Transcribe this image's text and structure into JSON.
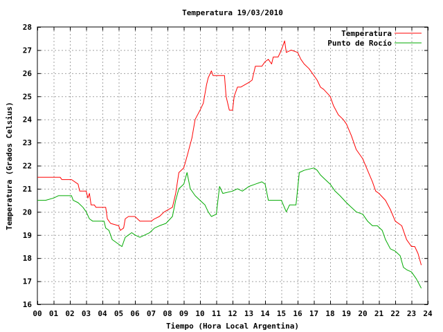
{
  "chart_data": {
    "type": "line",
    "title": "Temperatura 19/03/2010",
    "xlabel": "Tiempo (Hora Local Argentina)",
    "ylabel": "Temperatura (Grados Celsius)",
    "xlim": [
      0,
      24
    ],
    "ylim": [
      16,
      28
    ],
    "xticks": [
      0,
      1,
      2,
      3,
      4,
      5,
      6,
      7,
      8,
      9,
      10,
      11,
      12,
      13,
      14,
      15,
      16,
      17,
      18,
      19,
      20,
      21,
      22,
      23,
      24
    ],
    "xtick_labels": [
      "00",
      "01",
      "02",
      "03",
      "04",
      "05",
      "06",
      "07",
      "08",
      "09",
      "10",
      "11",
      "12",
      "13",
      "14",
      "15",
      "16",
      "17",
      "18",
      "19",
      "20",
      "21",
      "22",
      "23",
      "24"
    ],
    "yticks": [
      16,
      17,
      18,
      19,
      20,
      21,
      22,
      23,
      24,
      25,
      26,
      27,
      28
    ],
    "ytick_labels": [
      "16",
      "17",
      "18",
      "19",
      "20",
      "21",
      "22",
      "23",
      "24",
      "25",
      "26",
      "27",
      "28"
    ],
    "grid": true,
    "legend_position": "top-right",
    "series": [
      {
        "name": "Temperatura",
        "color": "#ff0000",
        "points": [
          [
            0.0,
            21.5
          ],
          [
            1.4,
            21.5
          ],
          [
            1.5,
            21.4
          ],
          [
            2.1,
            21.4
          ],
          [
            2.5,
            21.2
          ],
          [
            2.6,
            20.9
          ],
          [
            3.0,
            20.9
          ],
          [
            3.1,
            20.6
          ],
          [
            3.2,
            20.8
          ],
          [
            3.3,
            20.3
          ],
          [
            3.5,
            20.3
          ],
          [
            3.6,
            20.2
          ],
          [
            4.2,
            20.2
          ],
          [
            4.3,
            19.7
          ],
          [
            4.5,
            19.5
          ],
          [
            5.0,
            19.4
          ],
          [
            5.1,
            19.2
          ],
          [
            5.3,
            19.3
          ],
          [
            5.4,
            19.7
          ],
          [
            5.6,
            19.8
          ],
          [
            6.0,
            19.8
          ],
          [
            6.3,
            19.6
          ],
          [
            7.0,
            19.6
          ],
          [
            7.2,
            19.7
          ],
          [
            7.5,
            19.8
          ],
          [
            7.8,
            20.0
          ],
          [
            8.3,
            20.2
          ],
          [
            8.5,
            20.8
          ],
          [
            8.7,
            21.7
          ],
          [
            9.0,
            21.9
          ],
          [
            9.2,
            22.4
          ],
          [
            9.5,
            23.2
          ],
          [
            9.7,
            24.0
          ],
          [
            10.0,
            24.4
          ],
          [
            10.2,
            24.7
          ],
          [
            10.4,
            25.5
          ],
          [
            10.5,
            25.8
          ],
          [
            10.7,
            26.1
          ],
          [
            10.8,
            25.9
          ],
          [
            11.5,
            25.9
          ],
          [
            11.6,
            25.0
          ],
          [
            11.8,
            24.4
          ],
          [
            12.0,
            24.4
          ],
          [
            12.1,
            25.0
          ],
          [
            12.3,
            25.4
          ],
          [
            12.5,
            25.4
          ],
          [
            13.0,
            25.6
          ],
          [
            13.2,
            25.7
          ],
          [
            13.4,
            26.3
          ],
          [
            13.8,
            26.3
          ],
          [
            14.0,
            26.5
          ],
          [
            14.2,
            26.6
          ],
          [
            14.4,
            26.4
          ],
          [
            14.5,
            26.7
          ],
          [
            14.8,
            26.7
          ],
          [
            15.0,
            27.0
          ],
          [
            15.2,
            27.4
          ],
          [
            15.3,
            26.9
          ],
          [
            15.6,
            27.0
          ],
          [
            16.0,
            26.9
          ],
          [
            16.2,
            26.6
          ],
          [
            16.4,
            26.4
          ],
          [
            16.7,
            26.2
          ],
          [
            17.0,
            25.9
          ],
          [
            17.2,
            25.7
          ],
          [
            17.4,
            25.4
          ],
          [
            17.6,
            25.3
          ],
          [
            18.0,
            25.0
          ],
          [
            18.2,
            24.6
          ],
          [
            18.5,
            24.2
          ],
          [
            18.8,
            24.0
          ],
          [
            19.0,
            23.8
          ],
          [
            19.3,
            23.3
          ],
          [
            19.6,
            22.7
          ],
          [
            20.0,
            22.3
          ],
          [
            20.3,
            21.8
          ],
          [
            20.6,
            21.3
          ],
          [
            20.8,
            20.9
          ],
          [
            21.0,
            20.8
          ],
          [
            21.4,
            20.5
          ],
          [
            21.7,
            20.1
          ],
          [
            22.0,
            19.6
          ],
          [
            22.4,
            19.4
          ],
          [
            22.7,
            18.8
          ],
          [
            23.0,
            18.5
          ],
          [
            23.2,
            18.5
          ],
          [
            23.4,
            18.2
          ],
          [
            23.6,
            17.7
          ]
        ]
      },
      {
        "name": "Punto de Rocío",
        "color": "#00aa00",
        "points": [
          [
            0.0,
            20.5
          ],
          [
            0.5,
            20.5
          ],
          [
            1.0,
            20.6
          ],
          [
            1.3,
            20.7
          ],
          [
            2.1,
            20.7
          ],
          [
            2.2,
            20.5
          ],
          [
            2.5,
            20.4
          ],
          [
            2.8,
            20.2
          ],
          [
            3.0,
            20.0
          ],
          [
            3.2,
            19.7
          ],
          [
            3.4,
            19.6
          ],
          [
            4.1,
            19.6
          ],
          [
            4.2,
            19.3
          ],
          [
            4.4,
            19.2
          ],
          [
            4.6,
            18.8
          ],
          [
            5.0,
            18.6
          ],
          [
            5.2,
            18.5
          ],
          [
            5.4,
            18.9
          ],
          [
            5.6,
            19.0
          ],
          [
            5.8,
            19.1
          ],
          [
            6.0,
            19.0
          ],
          [
            6.3,
            18.9
          ],
          [
            6.6,
            19.0
          ],
          [
            6.9,
            19.1
          ],
          [
            7.2,
            19.3
          ],
          [
            7.5,
            19.4
          ],
          [
            7.9,
            19.5
          ],
          [
            8.3,
            19.8
          ],
          [
            8.5,
            20.5
          ],
          [
            8.7,
            21.0
          ],
          [
            9.0,
            21.2
          ],
          [
            9.2,
            21.7
          ],
          [
            9.4,
            21.0
          ],
          [
            9.7,
            20.7
          ],
          [
            10.0,
            20.5
          ],
          [
            10.3,
            20.3
          ],
          [
            10.5,
            20.0
          ],
          [
            10.7,
            19.8
          ],
          [
            11.0,
            19.9
          ],
          [
            11.2,
            21.1
          ],
          [
            11.4,
            20.8
          ],
          [
            12.0,
            20.9
          ],
          [
            12.3,
            21.0
          ],
          [
            12.6,
            20.9
          ],
          [
            13.0,
            21.1
          ],
          [
            13.4,
            21.2
          ],
          [
            13.8,
            21.3
          ],
          [
            14.0,
            21.2
          ],
          [
            14.2,
            20.5
          ],
          [
            15.0,
            20.5
          ],
          [
            15.3,
            20.0
          ],
          [
            15.5,
            20.3
          ],
          [
            15.9,
            20.3
          ],
          [
            16.1,
            21.7
          ],
          [
            16.4,
            21.8
          ],
          [
            17.0,
            21.9
          ],
          [
            17.2,
            21.8
          ],
          [
            17.4,
            21.6
          ],
          [
            17.7,
            21.4
          ],
          [
            18.0,
            21.2
          ],
          [
            18.3,
            20.9
          ],
          [
            18.6,
            20.7
          ],
          [
            19.0,
            20.4
          ],
          [
            19.3,
            20.2
          ],
          [
            19.6,
            20.0
          ],
          [
            20.0,
            19.9
          ],
          [
            20.3,
            19.6
          ],
          [
            20.6,
            19.4
          ],
          [
            20.9,
            19.4
          ],
          [
            21.2,
            19.2
          ],
          [
            21.4,
            18.8
          ],
          [
            21.7,
            18.4
          ],
          [
            22.0,
            18.3
          ],
          [
            22.3,
            18.1
          ],
          [
            22.5,
            17.6
          ],
          [
            22.7,
            17.5
          ],
          [
            23.0,
            17.4
          ],
          [
            23.3,
            17.1
          ],
          [
            23.6,
            16.7
          ]
        ]
      }
    ]
  }
}
